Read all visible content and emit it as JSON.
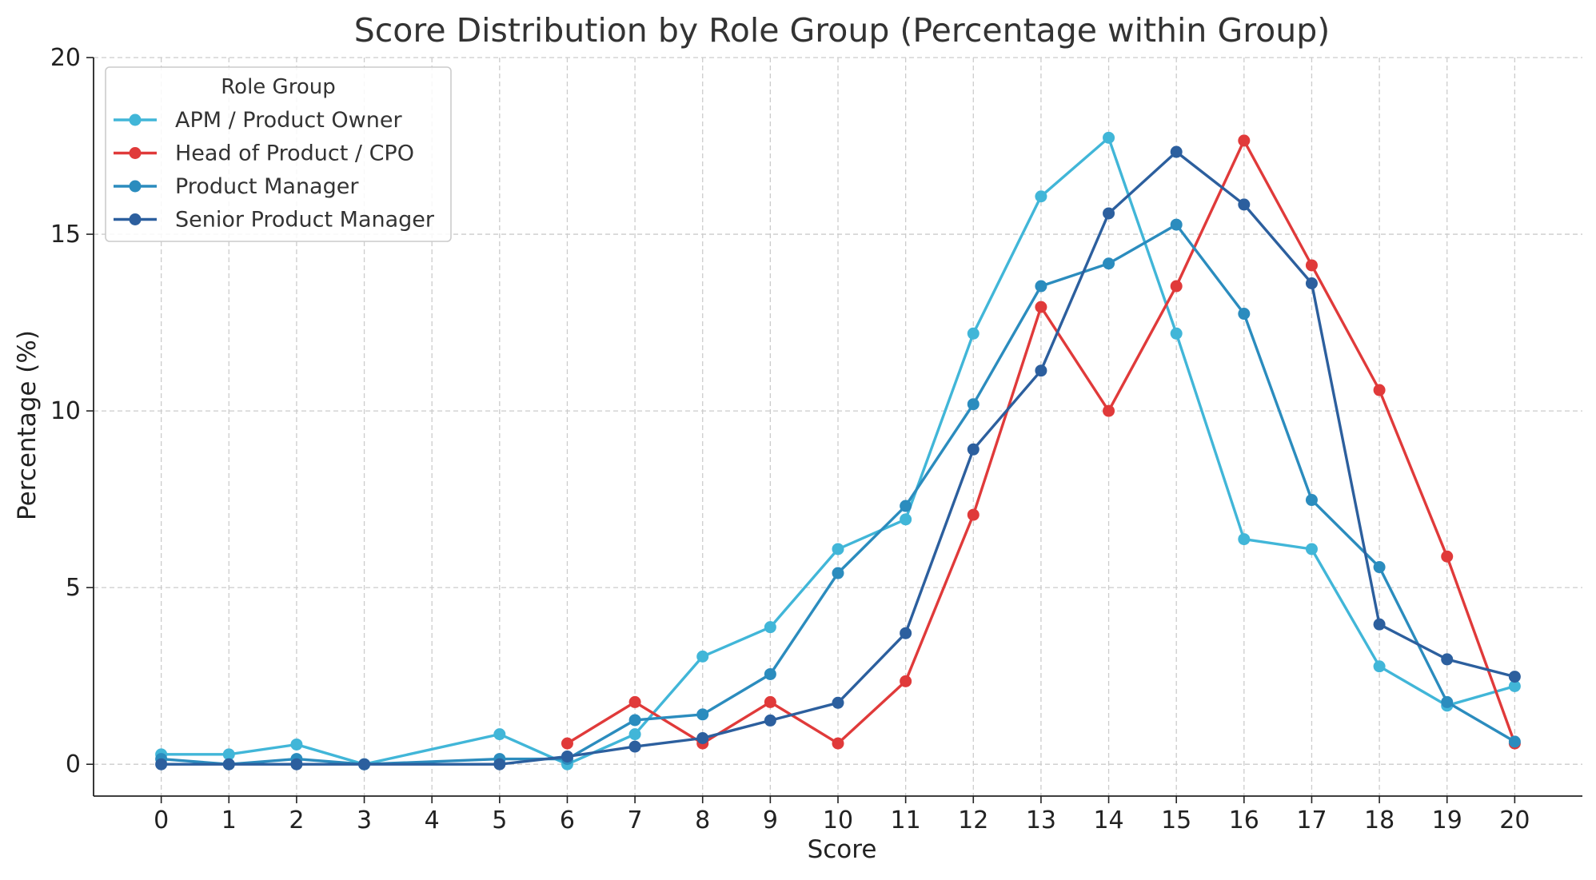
{
  "chart_data": {
    "type": "line",
    "title": "Score Distribution by Role Group (Percentage within Group)",
    "xlabel": "Score",
    "ylabel": "Percentage (%)",
    "xlim": [
      -1,
      21
    ],
    "ylim": [
      -0.9,
      20
    ],
    "xticks": [
      "0",
      "1",
      "2",
      "3",
      "4",
      "5",
      "6",
      "7",
      "8",
      "9",
      "10",
      "11",
      "12",
      "13",
      "14",
      "15",
      "16",
      "17",
      "18",
      "19",
      "20"
    ],
    "yticks": [
      "0",
      "5",
      "10",
      "15",
      "20"
    ],
    "grid": true,
    "legend_title": "Role Group",
    "legend_position": "top-left",
    "series": [
      {
        "name": "APM / Product Owner",
        "color": "#41b6d8",
        "x": [
          0,
          1,
          2,
          3,
          5,
          6,
          7,
          8,
          9,
          10,
          11,
          12,
          13,
          14,
          15,
          16,
          17,
          18,
          19,
          20
        ],
        "y": [
          0.28,
          0.28,
          0.56,
          0.0,
          0.85,
          0.0,
          0.85,
          3.05,
          3.88,
          6.09,
          6.93,
          12.19,
          16.07,
          17.73,
          12.19,
          6.37,
          6.09,
          2.77,
          1.66,
          2.21
        ]
      },
      {
        "name": "Head of Product / CPO",
        "color": "#e03a3a",
        "x": [
          6,
          7,
          8,
          9,
          10,
          11,
          12,
          13,
          14,
          15,
          16,
          17,
          18,
          19,
          20
        ],
        "y": [
          0.59,
          1.76,
          0.59,
          1.76,
          0.59,
          2.35,
          7.06,
          12.94,
          10.0,
          13.53,
          17.65,
          14.12,
          10.59,
          5.88,
          0.59
        ]
      },
      {
        "name": "Product Manager",
        "color": "#2b8cbe",
        "x": [
          0,
          1,
          2,
          3,
          5,
          6,
          7,
          8,
          9,
          10,
          11,
          12,
          13,
          14,
          15,
          16,
          17,
          18,
          19,
          20
        ],
        "y": [
          0.15,
          0.0,
          0.15,
          0.0,
          0.15,
          0.15,
          1.25,
          1.41,
          2.55,
          5.41,
          7.31,
          10.19,
          13.53,
          14.17,
          15.27,
          12.75,
          7.48,
          5.58,
          1.76,
          0.64
        ]
      },
      {
        "name": "Senior Product Manager",
        "color": "#2c5f9e",
        "x": [
          0,
          1,
          2,
          3,
          5,
          6,
          7,
          8,
          9,
          10,
          11,
          12,
          13,
          14,
          15,
          16,
          17,
          18,
          19,
          20
        ],
        "y": [
          0.0,
          0.0,
          0.0,
          0.0,
          0.0,
          0.22,
          0.5,
          0.74,
          1.24,
          1.74,
          3.71,
          8.91,
          11.14,
          15.59,
          17.33,
          15.84,
          13.61,
          3.96,
          2.97,
          2.48
        ]
      }
    ]
  }
}
